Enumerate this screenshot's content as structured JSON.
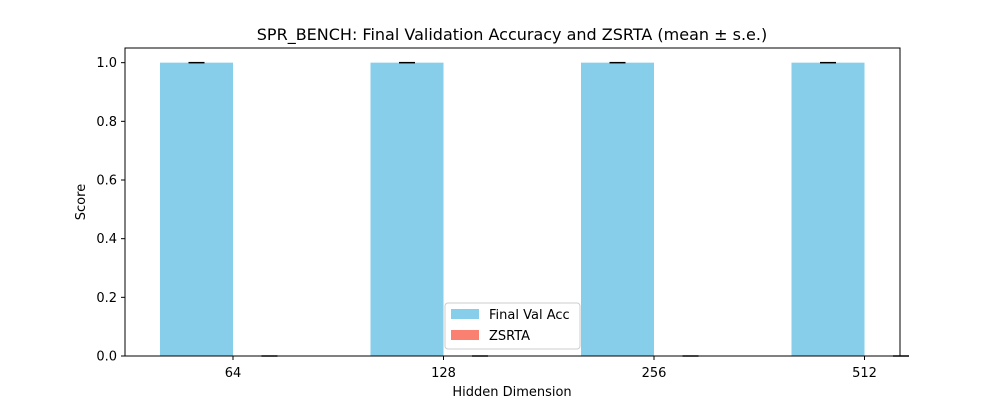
{
  "chart_data": {
    "type": "bar",
    "title": "SPR_BENCH: Final Validation Accuracy and ZSRTA (mean ± s.e.)",
    "xlabel": "Hidden Dimension",
    "ylabel": "Score",
    "categories": [
      "64",
      "128",
      "256",
      "512"
    ],
    "ylim": [
      0,
      1.05
    ],
    "yticks": [
      "0.0",
      "0.2",
      "0.4",
      "0.6",
      "0.8",
      "1.0"
    ],
    "ytick_values": [
      0,
      0.2,
      0.4,
      0.6,
      0.8,
      1.0
    ],
    "series": [
      {
        "name": "Final Val Acc",
        "color": "#87CEEB",
        "values": [
          1.0,
          1.0,
          1.0,
          1.0
        ],
        "errors": [
          0,
          0,
          0,
          0
        ]
      },
      {
        "name": "ZSRTA",
        "color": "#FA8072",
        "values": [
          0,
          0,
          0,
          0
        ],
        "errors": [
          0,
          0,
          0,
          0
        ]
      }
    ],
    "legend_position": "lower center",
    "grid": false
  }
}
